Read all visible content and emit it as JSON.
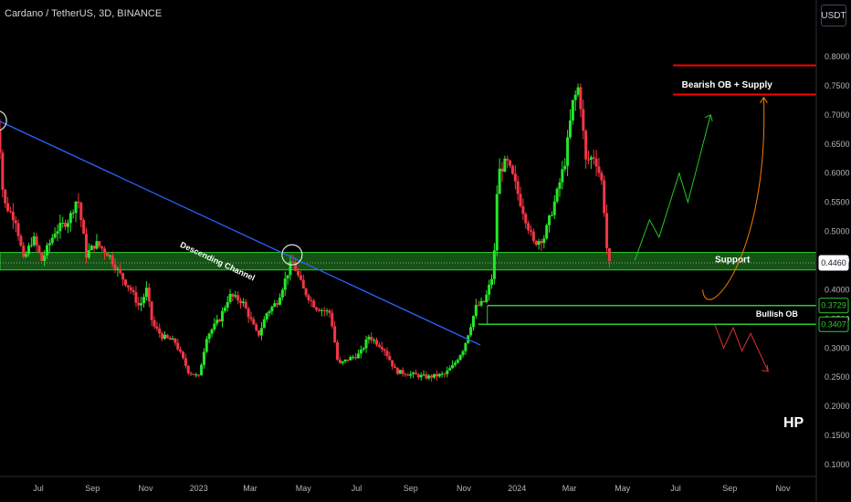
{
  "header": {
    "title": "Cardano / TetherUS, 3D, BINANCE",
    "currency_label": "USDT"
  },
  "colors": {
    "background": "#000000",
    "bull": "#089981",
    "bull_bright": "#26e62a",
    "bear": "#f23645",
    "trendline": "#2962ff",
    "zone_fill": "#1b6f1b",
    "zone_border": "#2ecc2e",
    "supply": "#ff0000",
    "projection_up": "#22c822",
    "projection_down": "#e03030",
    "projection_curve": "#f57c00"
  },
  "chart_data": {
    "type": "candlestick",
    "title": "Cardano / TetherUS, 3D, BINANCE",
    "y_axis": {
      "min": 0.07,
      "max": 0.84,
      "ticks": [
        "0.8000",
        "0.7500",
        "0.7000",
        "0.6500",
        "0.6000",
        "0.5500",
        "0.5000",
        "0.4500",
        "0.4000",
        "0.3500",
        "0.3000",
        "0.2500",
        "0.2000",
        "0.1500",
        "0.1000"
      ]
    },
    "x_axis": {
      "ticks": [
        {
          "label": "Jul",
          "date": "2022-07-01"
        },
        {
          "label": "Sep",
          "date": "2022-09-01"
        },
        {
          "label": "Nov",
          "date": "2022-11-01"
        },
        {
          "label": "2023",
          "date": "2023-01-01"
        },
        {
          "label": "Mar",
          "date": "2023-03-01"
        },
        {
          "label": "May",
          "date": "2023-05-01"
        },
        {
          "label": "Jul",
          "date": "2023-07-01"
        },
        {
          "label": "Sep",
          "date": "2023-09-01"
        },
        {
          "label": "Nov",
          "date": "2023-11-01"
        },
        {
          "label": "2024",
          "date": "2024-01-01"
        },
        {
          "label": "Mar",
          "date": "2024-03-01"
        },
        {
          "label": "May",
          "date": "2024-05-01"
        },
        {
          "label": "Jul",
          "date": "2024-07-01"
        },
        {
          "label": "Sep",
          "date": "2024-09-01"
        },
        {
          "label": "Nov",
          "date": "2024-11-01"
        }
      ]
    },
    "price_path": [
      [
        "2022-05-12",
        0.65
      ],
      [
        "2022-05-16",
        0.69
      ],
      [
        "2022-05-22",
        0.55
      ],
      [
        "2022-06-05",
        0.52
      ],
      [
        "2022-06-14",
        0.45
      ],
      [
        "2022-06-25",
        0.49
      ],
      [
        "2022-07-05",
        0.45
      ],
      [
        "2022-07-20",
        0.5
      ],
      [
        "2022-08-05",
        0.52
      ],
      [
        "2022-08-15",
        0.56
      ],
      [
        "2022-08-25",
        0.46
      ],
      [
        "2022-09-05",
        0.48
      ],
      [
        "2022-09-20",
        0.46
      ],
      [
        "2022-10-01",
        0.43
      ],
      [
        "2022-10-15",
        0.4
      ],
      [
        "2022-10-25",
        0.37
      ],
      [
        "2022-11-02",
        0.4
      ],
      [
        "2022-11-09",
        0.34
      ],
      [
        "2022-11-20",
        0.32
      ],
      [
        "2022-12-05",
        0.31
      ],
      [
        "2022-12-20",
        0.26
      ],
      [
        "2023-01-01",
        0.25
      ],
      [
        "2023-01-10",
        0.32
      ],
      [
        "2023-01-25",
        0.35
      ],
      [
        "2023-02-05",
        0.39
      ],
      [
        "2023-02-20",
        0.38
      ],
      [
        "2023-03-10",
        0.32
      ],
      [
        "2023-03-20",
        0.36
      ],
      [
        "2023-04-01",
        0.38
      ],
      [
        "2023-04-18",
        0.45
      ],
      [
        "2023-05-01",
        0.4
      ],
      [
        "2023-05-15",
        0.37
      ],
      [
        "2023-06-01",
        0.36
      ],
      [
        "2023-06-10",
        0.27
      ],
      [
        "2023-06-20",
        0.28
      ],
      [
        "2023-07-05",
        0.29
      ],
      [
        "2023-07-15",
        0.32
      ],
      [
        "2023-08-01",
        0.3
      ],
      [
        "2023-08-15",
        0.26
      ],
      [
        "2023-09-01",
        0.255
      ],
      [
        "2023-09-20",
        0.25
      ],
      [
        "2023-10-10",
        0.255
      ],
      [
        "2023-10-20",
        0.27
      ],
      [
        "2023-11-01",
        0.3
      ],
      [
        "2023-11-15",
        0.37
      ],
      [
        "2023-11-25",
        0.38
      ],
      [
        "2023-12-05",
        0.43
      ],
      [
        "2023-12-10",
        0.6
      ],
      [
        "2023-12-20",
        0.62
      ],
      [
        "2023-12-28",
        0.59
      ],
      [
        "2024-01-05",
        0.55
      ],
      [
        "2024-01-20",
        0.48
      ],
      [
        "2024-02-01",
        0.49
      ],
      [
        "2024-02-15",
        0.56
      ],
      [
        "2024-02-25",
        0.62
      ],
      [
        "2024-03-05",
        0.72
      ],
      [
        "2024-03-12",
        0.75
      ],
      [
        "2024-03-20",
        0.62
      ],
      [
        "2024-03-30",
        0.63
      ],
      [
        "2024-04-08",
        0.58
      ],
      [
        "2024-04-14",
        0.45
      ],
      [
        "2024-04-17",
        0.44
      ]
    ],
    "last_price": 0.446,
    "annotations": [
      {
        "type": "trendline",
        "label": "Descending Channel",
        "from": [
          "2022-05-12",
          0.693
        ],
        "to": [
          "2023-11-20",
          0.305
        ]
      },
      {
        "type": "zone",
        "label": "Support",
        "top": 0.464,
        "bottom": 0.434
      },
      {
        "type": "zone",
        "label": "Bullish OB",
        "top": 0.3729,
        "bottom": 0.3407
      },
      {
        "type": "level",
        "label": "Bearish OB + Supply",
        "levels": [
          0.785,
          0.735
        ]
      },
      {
        "type": "marker",
        "label": "",
        "levels": [
          0.446,
          0.3729,
          0.3407
        ]
      }
    ],
    "projections": {
      "up": [
        [
          "2024-05-15",
          0.45
        ],
        [
          "2024-06-01",
          0.52
        ],
        [
          "2024-06-12",
          0.49
        ],
        [
          "2024-07-05",
          0.6
        ],
        [
          "2024-07-15",
          0.55
        ],
        [
          "2024-08-10",
          0.7
        ]
      ],
      "down": [
        [
          "2024-08-15",
          0.34
        ],
        [
          "2024-08-25",
          0.3
        ],
        [
          "2024-09-05",
          0.335
        ],
        [
          "2024-09-15",
          0.295
        ],
        [
          "2024-09-25",
          0.325
        ],
        [
          "2024-10-15",
          0.26
        ]
      ],
      "curve": [
        [
          "2024-08-01",
          0.4
        ],
        [
          "2024-09-05",
          0.375
        ],
        [
          "2024-09-25",
          0.55
        ],
        [
          "2024-10-10",
          0.73
        ]
      ]
    },
    "labels": {
      "trendline": "Descending Channel",
      "support": "Support",
      "bullish_ob": "Bullish OB",
      "supply": "Bearish OB + Supply",
      "author": "HP"
    },
    "grid": false,
    "legend": "none"
  }
}
